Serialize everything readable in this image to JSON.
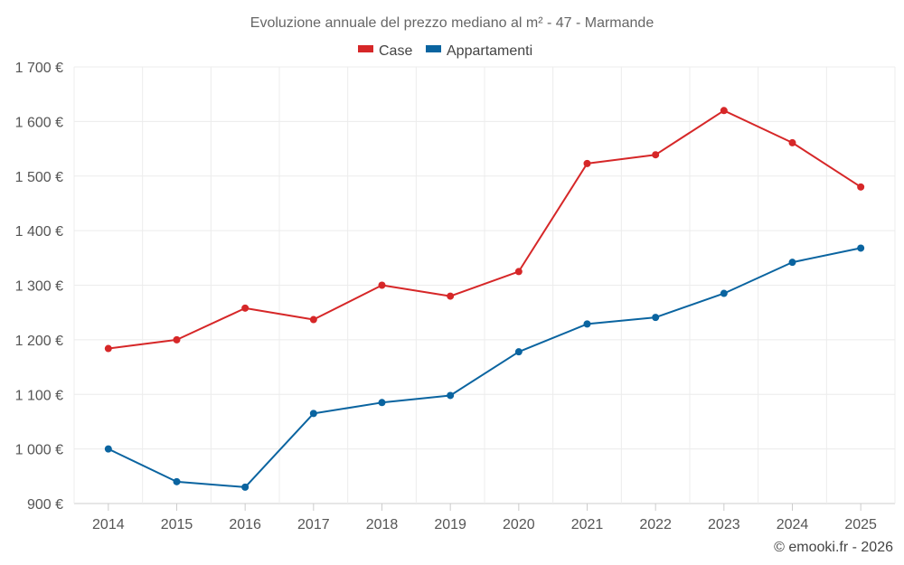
{
  "chart_data": {
    "type": "line",
    "title": "Evoluzione annuale del prezzo mediano al m² - 47 - Marmande",
    "categories": [
      "2014",
      "2015",
      "2016",
      "2017",
      "2018",
      "2019",
      "2020",
      "2021",
      "2022",
      "2023",
      "2024",
      "2025"
    ],
    "series": [
      {
        "name": "Case",
        "color": "#d62728",
        "values": [
          1184,
          1200,
          1258,
          1237,
          1300,
          1280,
          1325,
          1523,
          1539,
          1620,
          1561,
          1480
        ]
      },
      {
        "name": "Appartamenti",
        "color": "#0a64a0",
        "values": [
          1000,
          940,
          930,
          1065,
          1085,
          1098,
          1178,
          1229,
          1241,
          1285,
          1342,
          1368
        ]
      }
    ],
    "ylim": [
      900,
      1700
    ],
    "yticks": [
      900,
      1000,
      1100,
      1200,
      1300,
      1400,
      1500,
      1600,
      1700
    ],
    "ytick_labels": [
      "900 €",
      "1 000 €",
      "1 100 €",
      "1 200 €",
      "1 300 €",
      "1 400 €",
      "1 500 €",
      "1 600 €",
      "1 700 €"
    ],
    "xlabel": "",
    "ylabel": "",
    "grid": true,
    "legend_position": "top-center"
  },
  "credit": "© emooki.fr - 2026"
}
